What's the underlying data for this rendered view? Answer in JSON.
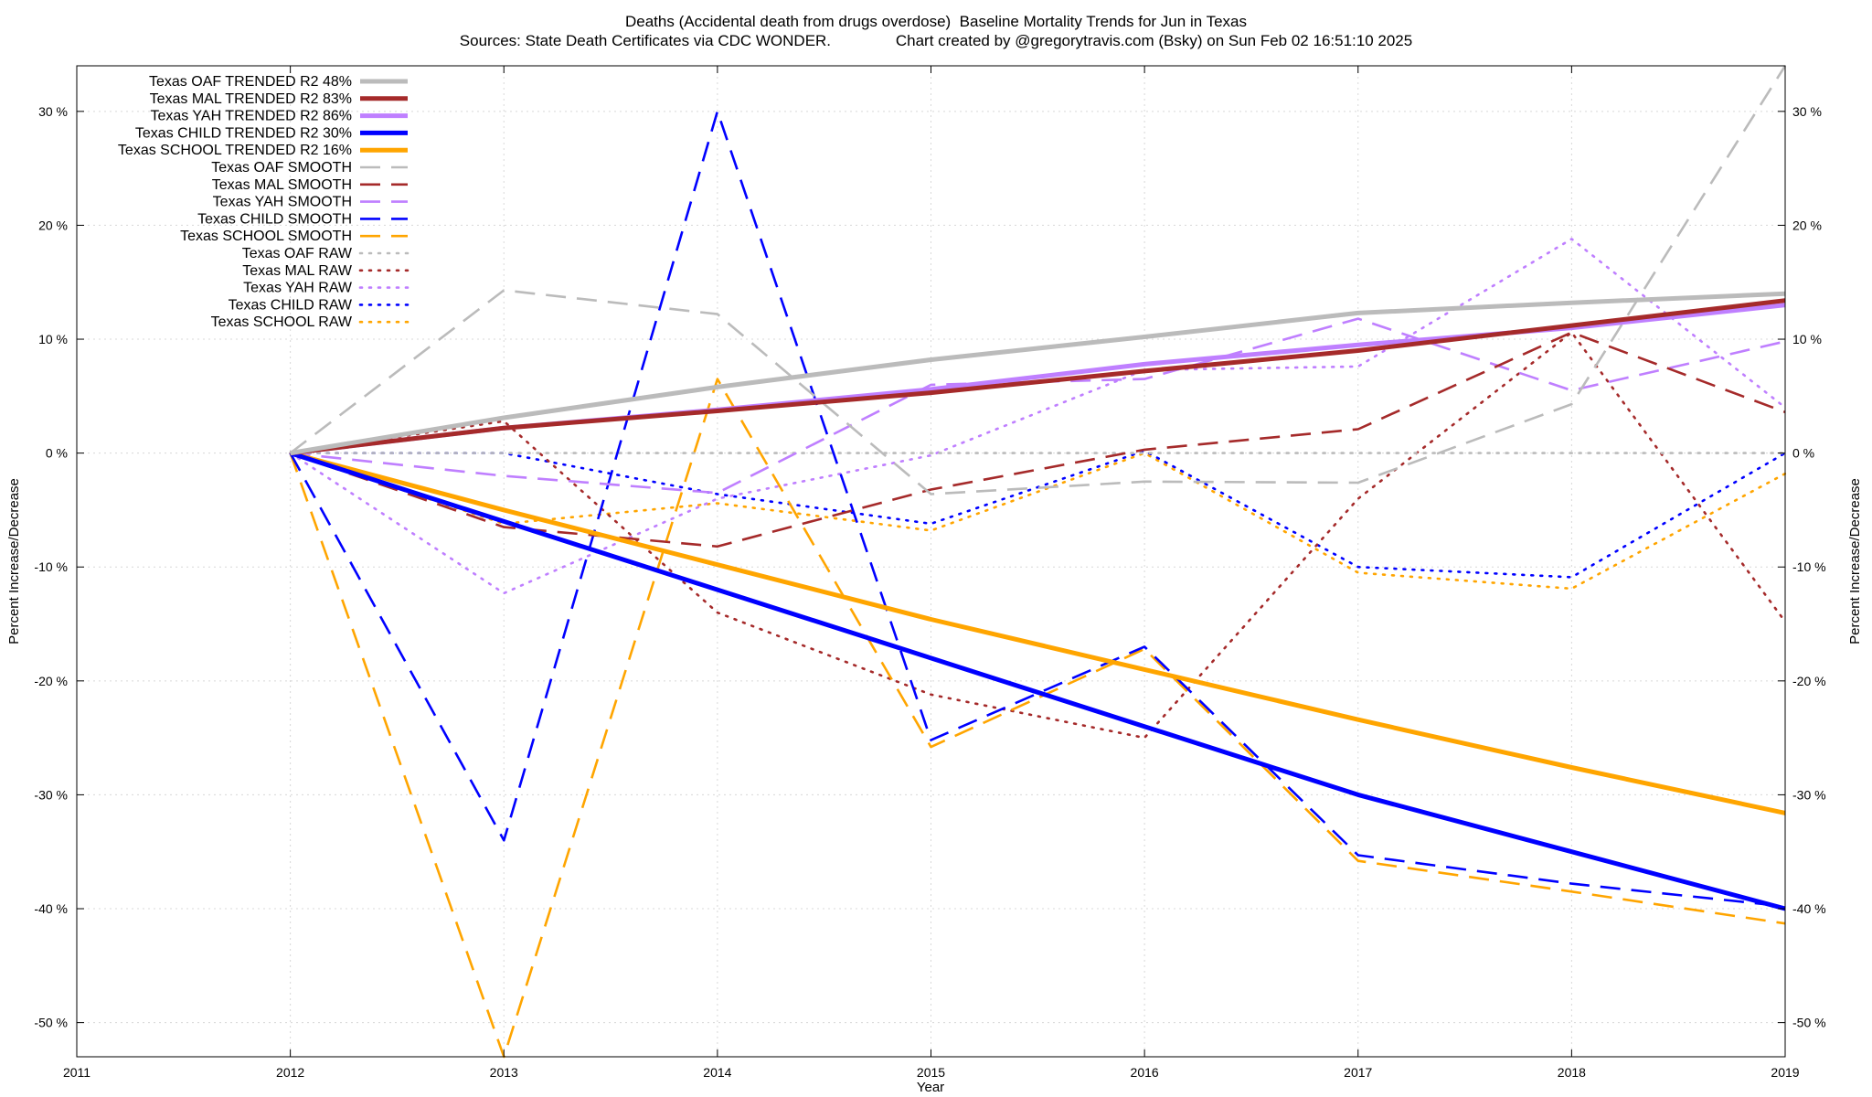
{
  "chart_data": {
    "type": "line",
    "title": "Deaths (Accidental death from drugs overdose)  Baseline Mortality Trends for Jun in Texas",
    "subtitle": "Sources: State Death Certificates via CDC WONDER.               Chart created by @gregorytravis.com (Bsky) on Sun Feb 02 16:51:10 2025",
    "xlabel": "Year",
    "ylabel": "Percent Increase/Decrease",
    "y2label": "Percent Increase/Decrease",
    "xlim": [
      2011,
      2019
    ],
    "ylim": [
      -53,
      34
    ],
    "x_ticks": [
      "2011",
      "2012",
      "2013",
      "2014",
      "2015",
      "2016",
      "2017",
      "2018",
      "2019"
    ],
    "y_ticks": [
      {
        "value": 30,
        "label": "30 %"
      },
      {
        "value": 20,
        "label": "20 %"
      },
      {
        "value": 10,
        "label": "10 %"
      },
      {
        "value": 0,
        "label": "0 %"
      },
      {
        "value": -10,
        "label": "-10 %"
      },
      {
        "value": -20,
        "label": "-20 %"
      },
      {
        "value": -30,
        "label": "-30 %"
      },
      {
        "value": -40,
        "label": "-40 %"
      },
      {
        "value": -50,
        "label": "-50 %"
      }
    ],
    "grid": true,
    "legend_position": "top-left",
    "series": [
      {
        "name": "Texas OAF TRENDED R2  48%",
        "style": "solid",
        "color": "#bbbbbb",
        "x": [
          2012,
          2013,
          2014,
          2015,
          2016,
          2017,
          2018,
          2019
        ],
        "y": [
          0,
          3.1,
          5.8,
          8.2,
          10.2,
          12.3,
          13.2,
          14.0
        ]
      },
      {
        "name": "Texas MAL TRENDED R2  83%",
        "style": "solid",
        "color": "#a52a2a",
        "x": [
          2012,
          2013,
          2014,
          2015,
          2016,
          2017,
          2018,
          2019
        ],
        "y": [
          0,
          2.2,
          3.7,
          5.3,
          7.2,
          9.0,
          11.2,
          13.4
        ]
      },
      {
        "name": "Texas YAH TRENDED R2  86%",
        "style": "solid",
        "color": "#bf7fff",
        "x": [
          2012,
          2013,
          2014,
          2015,
          2016,
          2017,
          2018,
          2019
        ],
        "y": [
          0,
          2.2,
          3.8,
          5.6,
          7.8,
          9.5,
          11.0,
          13.0
        ]
      },
      {
        "name": "Texas CHILD TRENDED R2  30%",
        "style": "solid",
        "color": "#0000ff",
        "x": [
          2012,
          2013,
          2014,
          2015,
          2016,
          2017,
          2018,
          2019
        ],
        "y": [
          0,
          -6.0,
          -12.0,
          -18.0,
          -24.0,
          -30.0,
          -35.0,
          -40.0
        ]
      },
      {
        "name": "Texas SCHOOL TRENDED R2  16%",
        "style": "solid",
        "color": "#ffa500",
        "x": [
          2012,
          2013,
          2014,
          2015,
          2016,
          2017,
          2018,
          2019
        ],
        "y": [
          0,
          -5.0,
          -9.8,
          -14.6,
          -19.0,
          -23.4,
          -27.6,
          -31.6
        ]
      },
      {
        "name": "Texas OAF SMOOTH",
        "style": "dashed",
        "color": "#bbbbbb",
        "x": [
          2012,
          2013,
          2014,
          2015,
          2016,
          2017,
          2018,
          2019
        ],
        "y": [
          0,
          14.3,
          12.2,
          -3.6,
          -2.5,
          -2.6,
          4.3,
          34.0
        ]
      },
      {
        "name": "Texas MAL SMOOTH",
        "style": "dashed",
        "color": "#a52a2a",
        "x": [
          2012,
          2013,
          2014,
          2015,
          2016,
          2017,
          2018,
          2019
        ],
        "y": [
          0,
          -6.5,
          -8.2,
          -3.2,
          0.3,
          2.1,
          10.6,
          3.6
        ]
      },
      {
        "name": "Texas YAH SMOOTH",
        "style": "dashed",
        "color": "#bf7fff",
        "x": [
          2012,
          2013,
          2014,
          2015,
          2016,
          2017,
          2018,
          2019
        ],
        "y": [
          0,
          -2.0,
          -3.5,
          6.0,
          6.5,
          11.8,
          5.5,
          9.8
        ]
      },
      {
        "name": "Texas CHILD SMOOTH",
        "style": "dashed",
        "color": "#0000ff",
        "x": [
          2012,
          2013,
          2014,
          2015,
          2016,
          2017,
          2018,
          2019
        ],
        "y": [
          0,
          -34.0,
          30.0,
          -25.2,
          -17.0,
          -35.3,
          -37.8,
          -39.8
        ]
      },
      {
        "name": "Texas SCHOOL SMOOTH",
        "style": "dashed",
        "color": "#ffa500",
        "x": [
          2012,
          2013,
          2014,
          2015,
          2016,
          2017,
          2018,
          2019
        ],
        "y": [
          0,
          -53.0,
          6.5,
          -25.8,
          -17.2,
          -35.8,
          -38.5,
          -41.3
        ]
      },
      {
        "name": "Texas OAF RAW",
        "style": "dotted",
        "color": "#bbbbbb",
        "x": [
          2012,
          2013,
          2014,
          2015,
          2016,
          2017,
          2018,
          2019
        ],
        "y": [
          0,
          0,
          0,
          0,
          0,
          0,
          0,
          0
        ]
      },
      {
        "name": "Texas MAL RAW",
        "style": "dotted",
        "color": "#a52a2a",
        "x": [
          2012,
          2013,
          2014,
          2015,
          2016,
          2017,
          2018,
          2019
        ],
        "y": [
          0,
          2.8,
          -14.0,
          -21.2,
          -25.0,
          -4.0,
          10.6,
          -14.8
        ]
      },
      {
        "name": "Texas YAH RAW",
        "style": "dotted",
        "color": "#bf7fff",
        "x": [
          2012,
          2013,
          2014,
          2015,
          2016,
          2017,
          2018,
          2019
        ],
        "y": [
          0,
          -12.3,
          -4.0,
          -0.2,
          7.3,
          7.6,
          18.8,
          4.0
        ]
      },
      {
        "name": "Texas CHILD RAW",
        "style": "dotted",
        "color": "#0000ff",
        "x": [
          2012,
          2013,
          2014,
          2015,
          2016,
          2017,
          2018,
          2019
        ],
        "y": [
          0,
          0,
          -3.6,
          -6.2,
          0.2,
          -10.0,
          -10.9,
          0
        ]
      },
      {
        "name": "Texas SCHOOL RAW",
        "style": "dotted",
        "color": "#ffa500",
        "x": [
          2012,
          2013,
          2014,
          2015,
          2016,
          2017,
          2018,
          2019
        ],
        "y": [
          0,
          -6.2,
          -4.4,
          -6.8,
          0,
          -10.5,
          -11.9,
          -1.8
        ]
      }
    ]
  }
}
